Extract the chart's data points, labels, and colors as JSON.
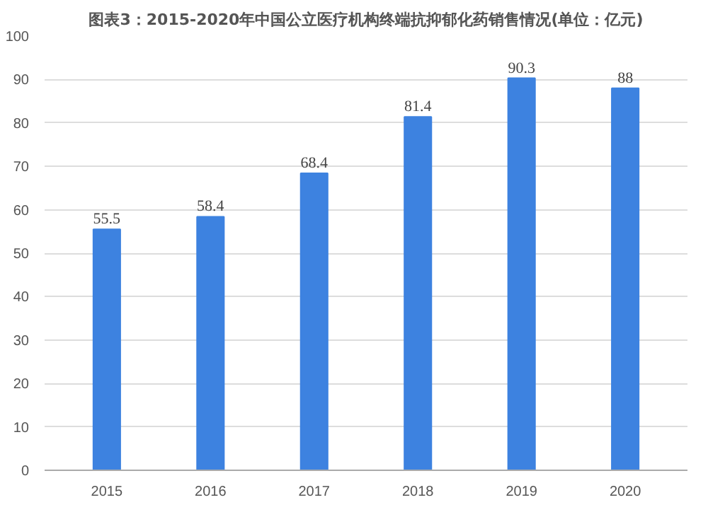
{
  "chart_data": {
    "type": "bar",
    "title": "图表3：2015-2020年中国公立医疗机构终端抗抑郁化药销售情况(单位：亿元)",
    "categories": [
      "2015",
      "2016",
      "2017",
      "2018",
      "2019",
      "2020"
    ],
    "values": [
      55.5,
      58.4,
      68.4,
      81.4,
      90.3,
      88
    ],
    "color": "#3d82e0",
    "ylim": [
      0,
      100
    ],
    "yticks": [
      0,
      10,
      20,
      30,
      40,
      50,
      60,
      70,
      80,
      90,
      100
    ],
    "grid": "y",
    "data_labels": true
  }
}
